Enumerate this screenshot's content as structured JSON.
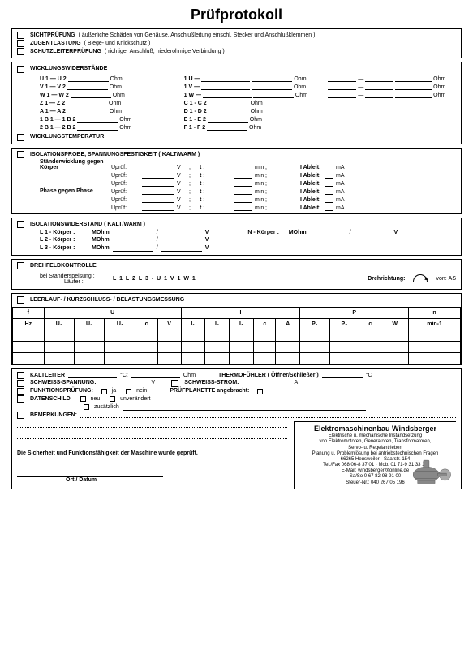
{
  "title": "Prüfprotokoll",
  "topchecks": [
    {
      "label": "SICHTPRÜFUNG",
      "note": "( äußerliche Schäden von Gehäuse, Anschlußleitung einschl. Stecker und Anschlußklemmen )"
    },
    {
      "label": "ZUGENTLASTUNG",
      "note": "( Biege- und Knickschutz )"
    },
    {
      "label": "SCHUTZLEITERPRÜFUNG",
      "note": "( richtiger Anschluß, niederohmige Verbindung )"
    }
  ],
  "wick": {
    "title": "WICKLUNGSWIDERSTÄNDE",
    "temp": "WICKLUNGSTEMPERATUR",
    "col1": [
      "U 1   —   U 2",
      "V 1   —   V 2",
      "W 1   —   W 2",
      "Z 1   —   Z 2",
      "A 1   —   A 2",
      "1 B 1   —   1 B 2",
      "2 B 1   —   2 B 2"
    ],
    "col2": [
      "1 U   —",
      "1 V   —",
      "1 W   —",
      "C 1 - C 2",
      "D 1 - D 2",
      "E 1 - E 2",
      "F 1 - F 2"
    ],
    "ohm": "Ohm"
  },
  "isoprobe": {
    "title": "ISOLATIONSPROBE, SPANNUNGSFESTIGKEIT ( KALT/WARM )",
    "labels": [
      "Ständerwicklung gegen Körper",
      "",
      "",
      "Phase gegen Phase",
      "",
      ""
    ],
    "upr": "Uprüf:",
    "v": "V",
    "sc": ";",
    "t": "t :",
    "min": "min",
    "abl": "I Ableit:",
    "ma": "mA"
  },
  "isow": {
    "title": "ISOLATIONSWIDERSTAND ( KALT/WARM )",
    "items": [
      "L 1 - Körper :",
      "L 2 - Körper :",
      "L 3 - Körper :"
    ],
    "nk": "N - Körper :",
    "mohm": "MOhm",
    "v": "V"
  },
  "dreh": {
    "title": "DREHFELDKONTROLLE",
    "sp": "bei Ständerspeisung :",
    "sp2": "Läufer :",
    "phases": "L 1   L 2   L 3  -  U 1   V 1   W 1",
    "rt": "Drehrichtung:",
    "von": "von:",
    "as": "AS"
  },
  "leer": {
    "title": "LEERLAUF- / KURZSCHLUSS- / BELASTUNGSMESSUNG",
    "hdr": [
      "f",
      "U",
      "I",
      "P",
      "n"
    ],
    "sub": [
      "Hz",
      "U₁",
      "U₂",
      "U₃",
      "c",
      "V",
      "I₁",
      "I₂",
      "I₃",
      "c",
      "A",
      "P₁",
      "P₂",
      "c",
      "W",
      "min-1"
    ]
  },
  "bottom": {
    "kalt": "KALTLEITER",
    "oc": "°C:",
    "ohm": "Ohm",
    "thermo": "THERMOFÜHLER ( Öffner/Schließer )",
    "oc2": "°C",
    "schwsp": "SCHWEISS-SPANNUNG:",
    "v": "V",
    "schwst": "SCHWEISS-STROM:",
    "a": "A",
    "funk": "FUNKTIONSPRÜFUNG:",
    "ja": "ja",
    "nein": "nein",
    "plak": "PRÜFPLAKETTE angebracht:",
    "daten": "DATENSCHILD",
    "neu": "neu",
    "unv": "unverändert",
    "zus": "zusätzlich",
    "bem": "BEMERKUNGEN:"
  },
  "footer": {
    "confirm": "Die Sicherheit und Funktionsfähigkeit der Maschine wurde geprüft.",
    "sig": "Ort / Datum",
    "company": "Elektromaschinenbau Windsberger",
    "l1": "Elektrische u. mechanische Instandsetzung",
    "l2": "von Elektromotoren, Generatoren, Transformatoren,",
    "l3": "Servo- u. Regelantrieben",
    "l4": "Planung u. Problemlösung bei antriebstechnischen Fragen",
    "l5": "66265 Heusweiler · Saarstr. 154",
    "l6": "Tel./Fax 068 06-8 37 01 · Mob. 01 71-9 31 33 14",
    "l7": "E-Mail: windsberger@online.de",
    "l8": "Sa/So 0 67 82-98 91 00",
    "l9": "Steuer-Nr.: 040 267 05 196"
  }
}
